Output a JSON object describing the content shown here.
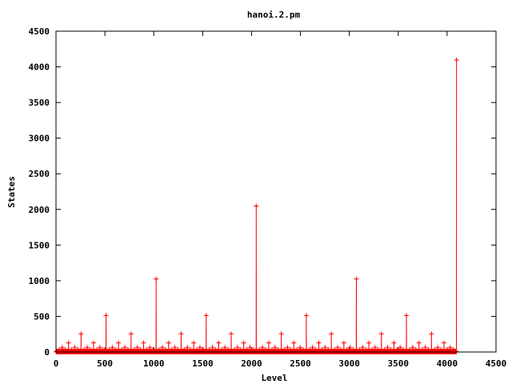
{
  "chart_data": {
    "type": "line",
    "markers": "plus",
    "title": "hanoi.2.pm",
    "xlabel": "Level",
    "ylabel": "States",
    "xlim": [
      0,
      4500
    ],
    "ylim": [
      0,
      4500
    ],
    "xticks": [
      0,
      500,
      1000,
      1500,
      2000,
      2500,
      3000,
      3500,
      4000,
      4500
    ],
    "yticks": [
      0,
      500,
      1000,
      1500,
      2000,
      2500,
      3000,
      3500,
      4000,
      4500
    ],
    "xtick_labels": [
      "0",
      "500",
      "1000",
      "1500",
      "2000",
      "2500",
      "3000",
      "3500",
      "4000",
      "4500"
    ],
    "ytick_labels": [
      "0",
      "500",
      "1000",
      "1500",
      "2000",
      "2500",
      "3000",
      "3500",
      "4000",
      "4500"
    ],
    "grid": false,
    "legend": "none",
    "series": [
      {
        "color": "#ff0000",
        "point_count": 4096,
        "pattern": "ruler sequence: states at level n = 2^(number of trailing zero bits of n), max 4096 at n = 4096",
        "x_max": 4096,
        "y_max": 4096
      }
    ]
  }
}
